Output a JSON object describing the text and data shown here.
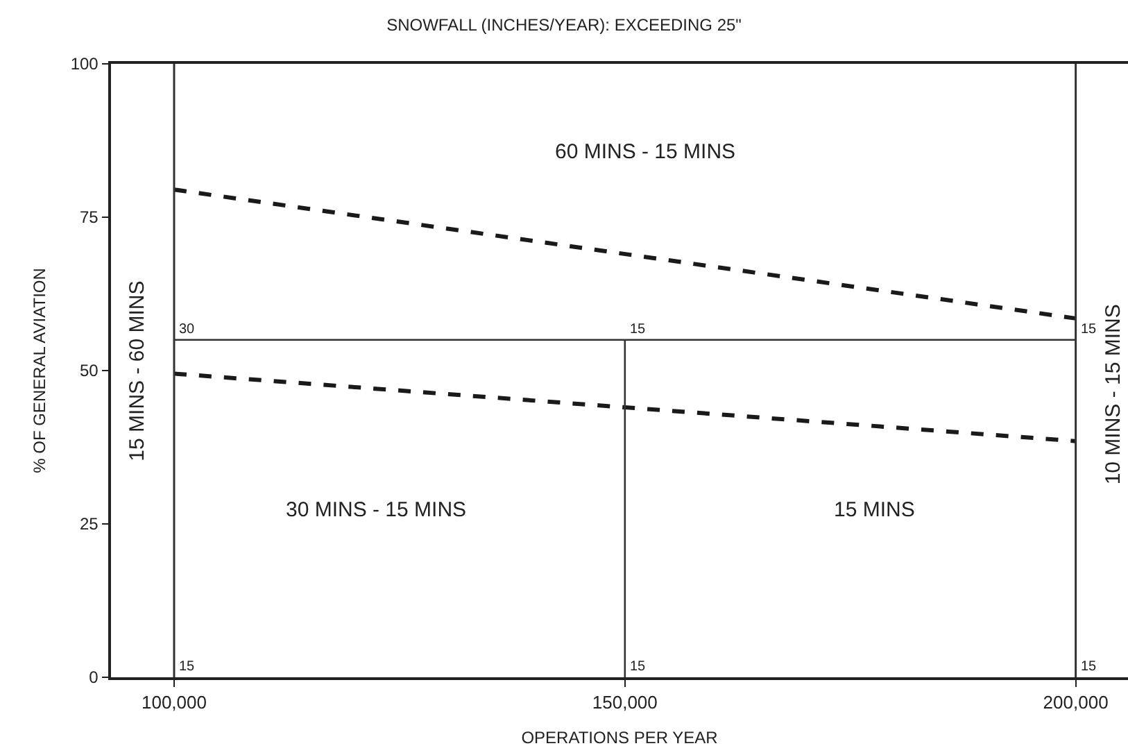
{
  "chart_data": {
    "type": "line",
    "title": "SNOWFALL (INCHES/YEAR): EXCEEDING 25\"",
    "xlabel": "OPERATIONS PER YEAR",
    "ylabel": "% OF GENERAL AVIATION",
    "series": [
      {
        "x": [
          100000,
          200000
        ],
        "values": [
          79.5,
          58.5
        ],
        "color": "#1a1a1a",
        "line_style": "dashed"
      },
      {
        "x": [
          100000,
          150000,
          200000
        ],
        "values": [
          49.5,
          44,
          38.5
        ],
        "color": "#1a1a1a",
        "line_style": "dashed"
      },
      {
        "x": [
          100000,
          200000
        ],
        "values": [
          55,
          55
        ],
        "color": "#333333",
        "line_style": "solid"
      },
      {
        "x": [
          150000,
          150000
        ],
        "values": [
          0,
          55
        ],
        "color": "#333333",
        "line_style": "solid"
      }
    ],
    "ref_lines": [
      {
        "axis": "x",
        "value": 100000,
        "label": null,
        "color": "#333333"
      },
      {
        "axis": "x",
        "value": 200000,
        "label": null,
        "color": "#333333"
      }
    ],
    "annotations": [
      "60 MINS - 15 MINS",
      "30 MINS - 15 MINS",
      "15 MINS",
      "15 MINS - 60 MINS",
      "10 MINS - 15 MINS",
      {
        "text": "30",
        "x": 100000,
        "y": 55
      },
      {
        "text": "15",
        "x": 150000,
        "y": 55
      },
      {
        "text": "15",
        "x": 200000,
        "y": 55
      },
      {
        "text": "15",
        "x": 100000,
        "y": 0
      },
      {
        "text": "15",
        "x": 150000,
        "y": 0
      },
      {
        "text": "15",
        "x": 200000,
        "y": 0
      }
    ],
    "xlim": [
      93000,
      205800
    ],
    "ylim": [
      0,
      100
    ],
    "xticks": [
      {
        "value": 100000,
        "label": "100,000"
      },
      {
        "value": 150000,
        "label": "150,000"
      },
      {
        "value": 200000,
        "label": "200,000"
      }
    ],
    "yticks": [
      0,
      25,
      50,
      75,
      100
    ],
    "marker": "none"
  }
}
